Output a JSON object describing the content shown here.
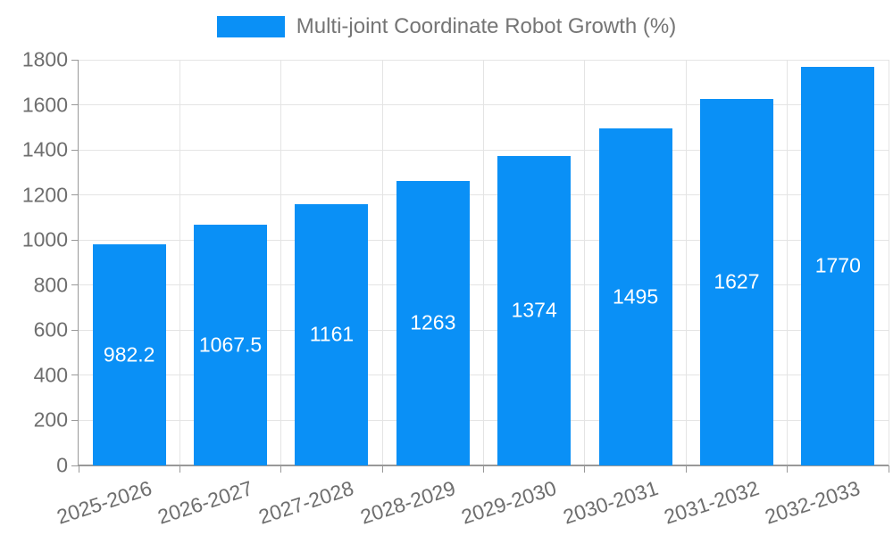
{
  "chart_data": {
    "type": "bar",
    "title": "Multi-joint Coordinate Robot Growth (%)",
    "categories": [
      "2025-2026",
      "2026-2027",
      "2027-2028",
      "2028-2029",
      "2029-2030",
      "2030-2031",
      "2031-2032",
      "2032-2033"
    ],
    "values": [
      982.2,
      1067.5,
      1161,
      1263,
      1374,
      1495,
      1627,
      1770
    ],
    "value_labels": [
      "982.2",
      "1067.5",
      "1161",
      "1263",
      "1374",
      "1495",
      "1627",
      "1770"
    ],
    "yticks": [
      0,
      200,
      400,
      600,
      800,
      1000,
      1200,
      1400,
      1600,
      1800
    ],
    "ylim": [
      0,
      1800
    ],
    "xlabel": "",
    "ylabel": "",
    "grid": true,
    "legend_position": "top-center",
    "bar_label_position": "inside-middle"
  },
  "legend": {
    "label": "Multi-joint Coordinate Robot Growth (%)"
  },
  "colors": {
    "bar": "#0a90f6",
    "bar_label": "#ffffff",
    "grid": "#e4e4e4",
    "axis": "#999999",
    "axis_text": "#6e6e6e",
    "legend_text": "#757575",
    "background": "#ffffff"
  }
}
